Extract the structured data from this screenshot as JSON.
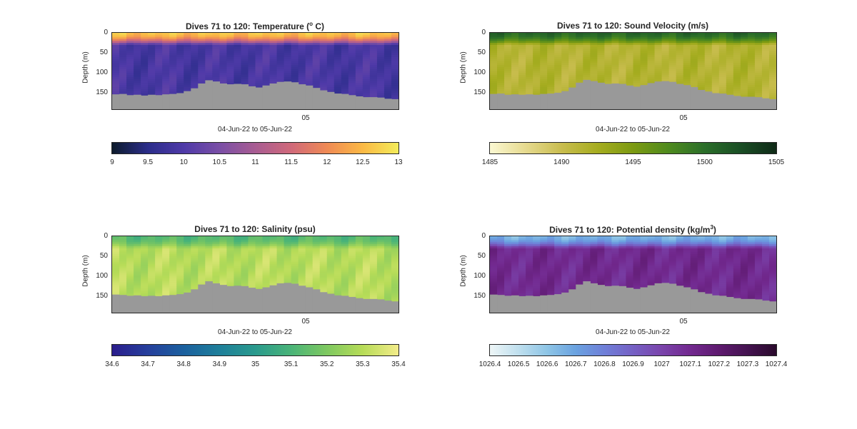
{
  "chart_data": [
    {
      "type": "heatmap",
      "title": "Dives 71 to 120: Temperature (",
      "title_sup": "o",
      "title_suffix": " C)",
      "xlabel": "04-Jun-22 to 05-Jun-22",
      "ylabel": "Depth (m)",
      "x_ticks": [
        "05"
      ],
      "y_ticks": [
        "0",
        "50",
        "100",
        "150"
      ],
      "ylim": [
        0,
        190
      ],
      "colorbar": {
        "min": 9,
        "max": 13,
        "ticks": [
          "9",
          "9.5",
          "10",
          "10.5",
          "11",
          "11.5",
          "12",
          "12.5",
          "13"
        ],
        "colors": [
          "#0d1b2c",
          "#2b2d8a",
          "#4f3aa8",
          "#7a4fa6",
          "#a85c92",
          "#d0697a",
          "#ef8a55",
          "#fbb945",
          "#f3ec5a"
        ]
      },
      "surface": {
        "top_value": 12.6,
        "mix_depth": 30,
        "deep_value": 9.9
      },
      "bottom_depth": [
        153,
        152,
        155,
        154,
        156,
        154,
        155,
        153,
        152,
        150,
        145,
        138,
        126,
        118,
        121,
        126,
        128,
        127,
        128,
        133,
        136,
        131,
        126,
        122,
        121,
        123,
        128,
        131,
        137,
        143,
        147,
        151,
        152,
        155,
        158,
        160,
        160,
        161,
        164,
        165
      ]
    },
    {
      "type": "heatmap",
      "title": "Dives 71 to 120: Sound Velocity (m/s)",
      "xlabel": "04-Jun-22 to 05-Jun-22",
      "ylabel": "Depth (m)",
      "x_ticks": [
        "05"
      ],
      "y_ticks": [
        "0",
        "50",
        "100",
        "150"
      ],
      "ylim": [
        0,
        190
      ],
      "colorbar": {
        "min": 1485,
        "max": 1505,
        "ticks": [
          "1485",
          "1490",
          "1495",
          "1500",
          "1505"
        ],
        "colors": [
          "#fbf8d2",
          "#e6da8f",
          "#c9bd4f",
          "#a6ad20",
          "#7c9a12",
          "#4e8a1e",
          "#2b6e2a",
          "#1a4e25",
          "#0f2a17"
        ]
      },
      "surface": {
        "top_value": 1500.5,
        "mix_depth": 30,
        "deep_value": 1491.5
      },
      "bottom_depth": [
        152,
        151,
        154,
        153,
        154,
        153,
        154,
        152,
        151,
        149,
        145,
        136,
        124,
        117,
        120,
        124,
        127,
        126,
        127,
        131,
        134,
        130,
        125,
        121,
        120,
        122,
        127,
        130,
        135,
        142,
        146,
        150,
        151,
        154,
        157,
        159,
        159,
        160,
        163,
        165
      ]
    },
    {
      "type": "heatmap",
      "title": "Dives 71 to 120: Salinity (psu)",
      "xlabel": "04-Jun-22 to 05-Jun-22",
      "ylabel": "Depth (m)",
      "x_ticks": [
        "05"
      ],
      "y_ticks": [
        "0",
        "50",
        "100",
        "150"
      ],
      "ylim": [
        0,
        190
      ],
      "colorbar": {
        "min": 34.6,
        "max": 35.4,
        "ticks": [
          "34.6",
          "34.7",
          "34.8",
          "34.9",
          "35",
          "35.1",
          "35.2",
          "35.3",
          "35.4"
        ],
        "colors": [
          "#2a1d8c",
          "#263f9c",
          "#1b609e",
          "#1e7f9a",
          "#2a9a8d",
          "#4ab478",
          "#7ec860",
          "#b7dc58",
          "#f3ec8a"
        ]
      },
      "surface": {
        "top_value": 35.12,
        "mix_depth": 30,
        "deep_value": 35.3
      },
      "bottom_depth": [
        145,
        146,
        148,
        147,
        149,
        148,
        149,
        147,
        146,
        144,
        140,
        132,
        120,
        112,
        117,
        121,
        124,
        123,
        124,
        128,
        131,
        127,
        122,
        117,
        116,
        118,
        123,
        127,
        132,
        139,
        143,
        147,
        148,
        151,
        154,
        156,
        156,
        157,
        160,
        162
      ]
    },
    {
      "type": "heatmap",
      "title": "Dives 71 to 120: Potential density (kg/m",
      "title_sup": "3",
      "title_suffix": ")",
      "xlabel": "04-Jun-22 to 05-Jun-22",
      "ylabel": "Depth (m)",
      "x_ticks": [
        "05"
      ],
      "y_ticks": [
        "0",
        "50",
        "100",
        "150"
      ],
      "ylim": [
        0,
        190
      ],
      "colorbar": {
        "min": 1026.4,
        "max": 1027.4,
        "ticks": [
          "1026.4",
          "1026.5",
          "1026.6",
          "1026.7",
          "1026.8",
          "1026.9",
          "1027",
          "1027.1",
          "1027.2",
          "1027.3",
          "1027.4"
        ],
        "colors": [
          "#eef6f7",
          "#bfdfee",
          "#8ec5e6",
          "#6aa2e0",
          "#6f7fd8",
          "#7560c4",
          "#7a44ab",
          "#72298f",
          "#5e1a6f",
          "#441350",
          "#2a0a2c"
        ]
      },
      "surface": {
        "top_value": 1026.65,
        "mix_depth": 30,
        "deep_value": 1027.1
      },
      "bottom_depth": [
        145,
        146,
        148,
        147,
        149,
        148,
        149,
        147,
        146,
        144,
        140,
        132,
        120,
        112,
        117,
        121,
        124,
        123,
        124,
        128,
        131,
        127,
        122,
        117,
        116,
        118,
        123,
        127,
        132,
        139,
        143,
        147,
        148,
        151,
        154,
        156,
        156,
        157,
        160,
        162
      ]
    }
  ],
  "seabed_color": "#999999"
}
